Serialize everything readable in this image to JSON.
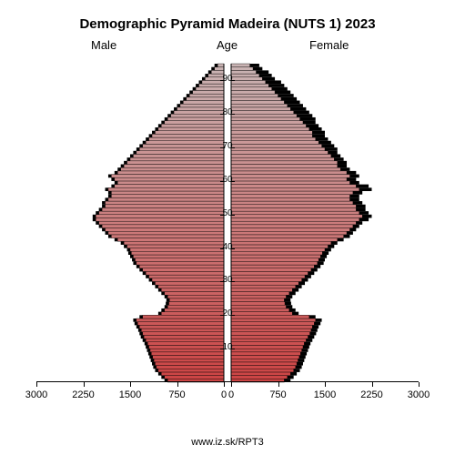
{
  "chart": {
    "type": "population-pyramid",
    "title": "Demographic Pyramid Madeira (NUTS 1) 2023",
    "title_fontsize": 15,
    "title_weight": "bold",
    "left_label": "Male",
    "right_label": "Female",
    "center_label": "Age",
    "footer": "www.iz.sk/RPT3",
    "background_color": "#ffffff",
    "x_axis": {
      "ticks": [
        3000,
        2250,
        1500,
        750,
        0,
        0,
        750,
        1500,
        2250,
        3000
      ],
      "tick_labels_left": [
        "3000",
        "2250",
        "1500",
        "750",
        "0"
      ],
      "tick_labels_right": [
        "0",
        "750",
        "1500",
        "2250",
        "3000"
      ],
      "max_value": 3000,
      "fontsize": 11
    },
    "y_axis": {
      "min_age": 0,
      "max_age": 95,
      "tick_labels": [
        "10",
        "20",
        "30",
        "40",
        "50",
        "60",
        "70",
        "80",
        "90"
      ],
      "tick_values": [
        10,
        20,
        30,
        40,
        50,
        60,
        70,
        80,
        90
      ],
      "fontsize": 11
    },
    "colors": {
      "gradient_top": "#c9b3b3",
      "gradient_bottom": "#cc4444",
      "bar_stroke": "#000000",
      "shadow_fill": "#000000",
      "axis_color": "#000000"
    },
    "bar_stroke_width": 0.4,
    "ages": [
      0,
      1,
      2,
      3,
      4,
      5,
      6,
      7,
      8,
      9,
      10,
      11,
      12,
      13,
      14,
      15,
      16,
      17,
      18,
      19,
      20,
      21,
      22,
      23,
      24,
      25,
      26,
      27,
      28,
      29,
      30,
      31,
      32,
      33,
      34,
      35,
      36,
      37,
      38,
      39,
      40,
      41,
      42,
      43,
      44,
      45,
      46,
      47,
      48,
      49,
      50,
      51,
      52,
      53,
      54,
      55,
      56,
      57,
      58,
      59,
      60,
      61,
      62,
      63,
      64,
      65,
      66,
      67,
      68,
      69,
      70,
      71,
      72,
      73,
      74,
      75,
      76,
      77,
      78,
      79,
      80,
      81,
      82,
      83,
      84,
      85,
      86,
      87,
      88,
      89,
      90,
      91,
      92,
      93,
      94
    ],
    "male_current": [
      900,
      950,
      1000,
      1050,
      1080,
      1100,
      1120,
      1140,
      1160,
      1180,
      1200,
      1220,
      1250,
      1280,
      1300,
      1320,
      1350,
      1380,
      1400,
      1300,
      1000,
      950,
      900,
      880,
      870,
      900,
      950,
      1000,
      1050,
      1100,
      1150,
      1200,
      1250,
      1300,
      1350,
      1400,
      1420,
      1450,
      1480,
      1500,
      1550,
      1600,
      1700,
      1800,
      1850,
      1900,
      1950,
      2000,
      2050,
      2050,
      2000,
      1950,
      1900,
      1900,
      1850,
      1800,
      1800,
      1850,
      1750,
      1700,
      1750,
      1800,
      1700,
      1650,
      1600,
      1550,
      1500,
      1450,
      1400,
      1350,
      1300,
      1250,
      1200,
      1150,
      1100,
      1050,
      1000,
      950,
      900,
      850,
      800,
      750,
      700,
      650,
      600,
      550,
      500,
      450,
      400,
      350,
      300,
      250,
      200,
      150,
      100
    ],
    "female_current": [
      850,
      900,
      950,
      1000,
      1030,
      1050,
      1070,
      1090,
      1110,
      1130,
      1150,
      1170,
      1200,
      1230,
      1260,
      1280,
      1300,
      1330,
      1350,
      1250,
      980,
      930,
      880,
      860,
      850,
      880,
      930,
      980,
      1030,
      1080,
      1130,
      1180,
      1230,
      1280,
      1330,
      1380,
      1400,
      1430,
      1460,
      1500,
      1550,
      1600,
      1700,
      1800,
      1850,
      1900,
      1950,
      2000,
      2050,
      2100,
      2050,
      2000,
      2000,
      1950,
      1900,
      1900,
      1950,
      2050,
      2000,
      1900,
      1850,
      1900,
      1850,
      1750,
      1700,
      1700,
      1650,
      1600,
      1550,
      1500,
      1450,
      1400,
      1350,
      1300,
      1300,
      1250,
      1200,
      1150,
      1100,
      1050,
      1000,
      950,
      900,
      850,
      800,
      750,
      700,
      650,
      600,
      550,
      500,
      450,
      400,
      350,
      300
    ],
    "male_shadow": [
      950,
      1000,
      1050,
      1100,
      1130,
      1150,
      1170,
      1190,
      1210,
      1230,
      1250,
      1270,
      1300,
      1330,
      1350,
      1370,
      1400,
      1430,
      1450,
      1350,
      1050,
      1000,
      950,
      930,
      920,
      950,
      1000,
      1050,
      1100,
      1150,
      1200,
      1250,
      1300,
      1350,
      1400,
      1450,
      1470,
      1500,
      1530,
      1550,
      1600,
      1650,
      1750,
      1850,
      1900,
      1950,
      2000,
      2050,
      2100,
      2100,
      2050,
      2000,
      1950,
      1950,
      1900,
      1850,
      1850,
      1900,
      1800,
      1750,
      1800,
      1850,
      1750,
      1700,
      1650,
      1600,
      1550,
      1500,
      1450,
      1400,
      1350,
      1300,
      1250,
      1200,
      1150,
      1100,
      1050,
      1000,
      950,
      900,
      850,
      800,
      750,
      700,
      650,
      600,
      550,
      500,
      450,
      400,
      350,
      300,
      250,
      200,
      150
    ],
    "female_shadow": [
      950,
      1000,
      1050,
      1100,
      1130,
      1150,
      1170,
      1190,
      1210,
      1230,
      1250,
      1270,
      1300,
      1330,
      1360,
      1380,
      1400,
      1430,
      1450,
      1350,
      1080,
      1030,
      980,
      960,
      950,
      980,
      1030,
      1080,
      1130,
      1180,
      1230,
      1280,
      1330,
      1380,
      1430,
      1480,
      1500,
      1530,
      1560,
      1600,
      1650,
      1700,
      1800,
      1900,
      1950,
      2000,
      2050,
      2100,
      2200,
      2250,
      2200,
      2150,
      2150,
      2100,
      2050,
      2050,
      2100,
      2250,
      2200,
      2050,
      2000,
      2050,
      2000,
      1900,
      1850,
      1850,
      1800,
      1750,
      1700,
      1700,
      1650,
      1600,
      1550,
      1500,
      1500,
      1450,
      1400,
      1350,
      1350,
      1300,
      1250,
      1200,
      1150,
      1100,
      1050,
      1000,
      950,
      900,
      850,
      800,
      700,
      650,
      600,
      500,
      450
    ]
  }
}
